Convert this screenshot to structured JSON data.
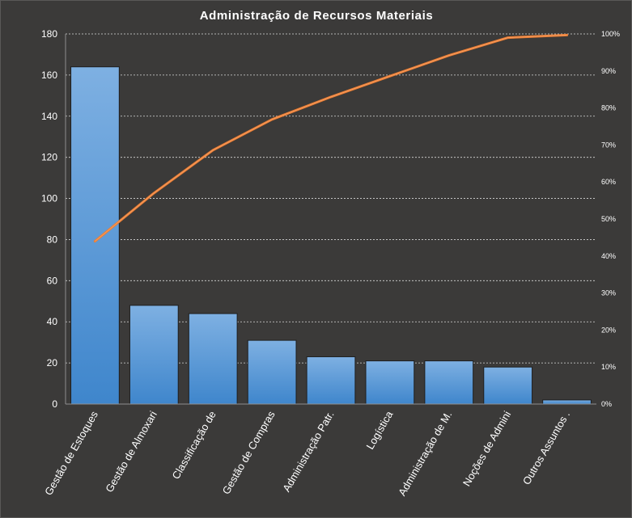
{
  "chart_data": {
    "type": "bar",
    "title": "Administração  de Recursos  Materiais",
    "categories": [
      "Gestão de Estoques",
      "Gestão de Almoxari",
      "Classificação de",
      "Gestão de Compras",
      "Administração Patr.",
      "Logística",
      "Administração de M.",
      "Noções de Admini",
      "Outros Assuntos ."
    ],
    "series": [
      {
        "type": "bar",
        "values": [
          164,
          48,
          44,
          31,
          23,
          21,
          21,
          18,
          2
        ]
      },
      {
        "type": "line",
        "axis": "right",
        "values": [
          44,
          57,
          68.6,
          76.9,
          83,
          88.6,
          94.2,
          99,
          99.7
        ]
      }
    ],
    "ylim": [
      0,
      180
    ],
    "yticks": [
      0,
      20,
      40,
      60,
      80,
      100,
      120,
      140,
      160,
      180
    ],
    "y2lim": [
      0,
      100
    ],
    "y2ticks": [
      "0%",
      "10%",
      "20%",
      "30%",
      "40%",
      "50%",
      "60%",
      "70%",
      "80%",
      "90%",
      "100%"
    ],
    "grid": true,
    "legend": "none",
    "colors": {
      "bar": "#5b9bd5",
      "bar_light": "#7eb0e2",
      "bar_dark": "#3f86cc",
      "line": "#ed7d31",
      "background": "#3b3a39"
    }
  }
}
